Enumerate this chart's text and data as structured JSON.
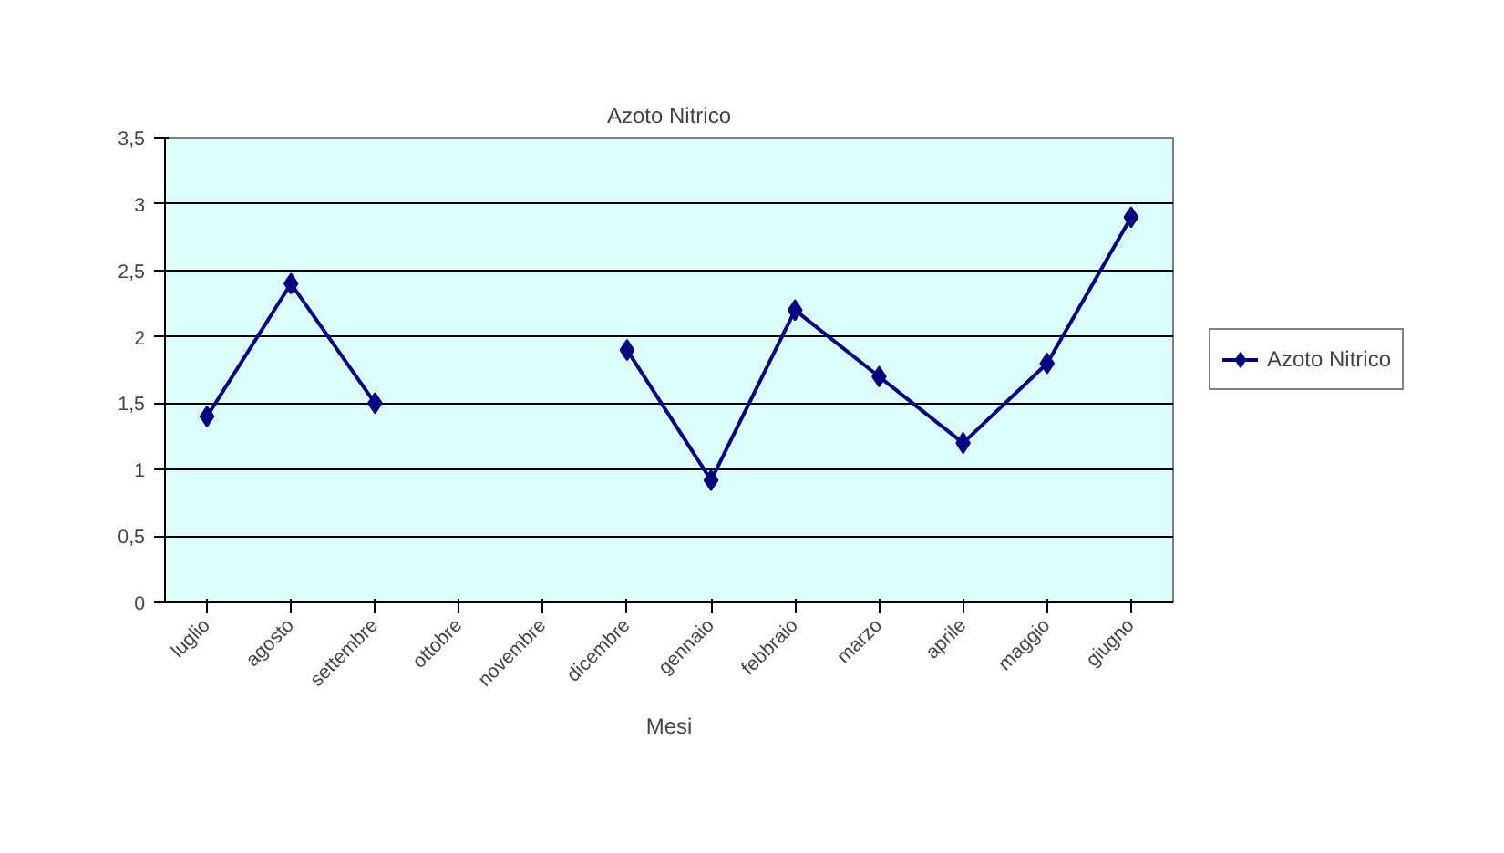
{
  "chart_data": {
    "type": "line",
    "title": "Azoto Nitrico",
    "xlabel": "Mesi",
    "categories": [
      "luglio",
      "agosto",
      "settembre",
      "ottobre",
      "novembre",
      "dicembre",
      "gennaio",
      "febbraio",
      "marzo",
      "aprile",
      "maggio",
      "giugno"
    ],
    "series": [
      {
        "name": "Azoto Nitrico",
        "color": "#000080",
        "values": [
          1.4,
          2.4,
          1.5,
          null,
          null,
          1.9,
          0.92,
          2.2,
          1.7,
          1.2,
          1.8,
          2.9
        ]
      }
    ],
    "ylim": [
      0,
      3.5
    ],
    "yticks": [
      {
        "value": 0,
        "label": "0"
      },
      {
        "value": 0.5,
        "label": "0,5"
      },
      {
        "value": 1,
        "label": "1"
      },
      {
        "value": 1.5,
        "label": "1,5"
      },
      {
        "value": 2,
        "label": "2"
      },
      {
        "value": 2.5,
        "label": "2,5"
      },
      {
        "value": 3,
        "label": "3"
      },
      {
        "value": 3.5,
        "label": "3,5"
      }
    ],
    "grid": "y",
    "legend": "right",
    "marker": "diamond",
    "line_style": "solid"
  }
}
